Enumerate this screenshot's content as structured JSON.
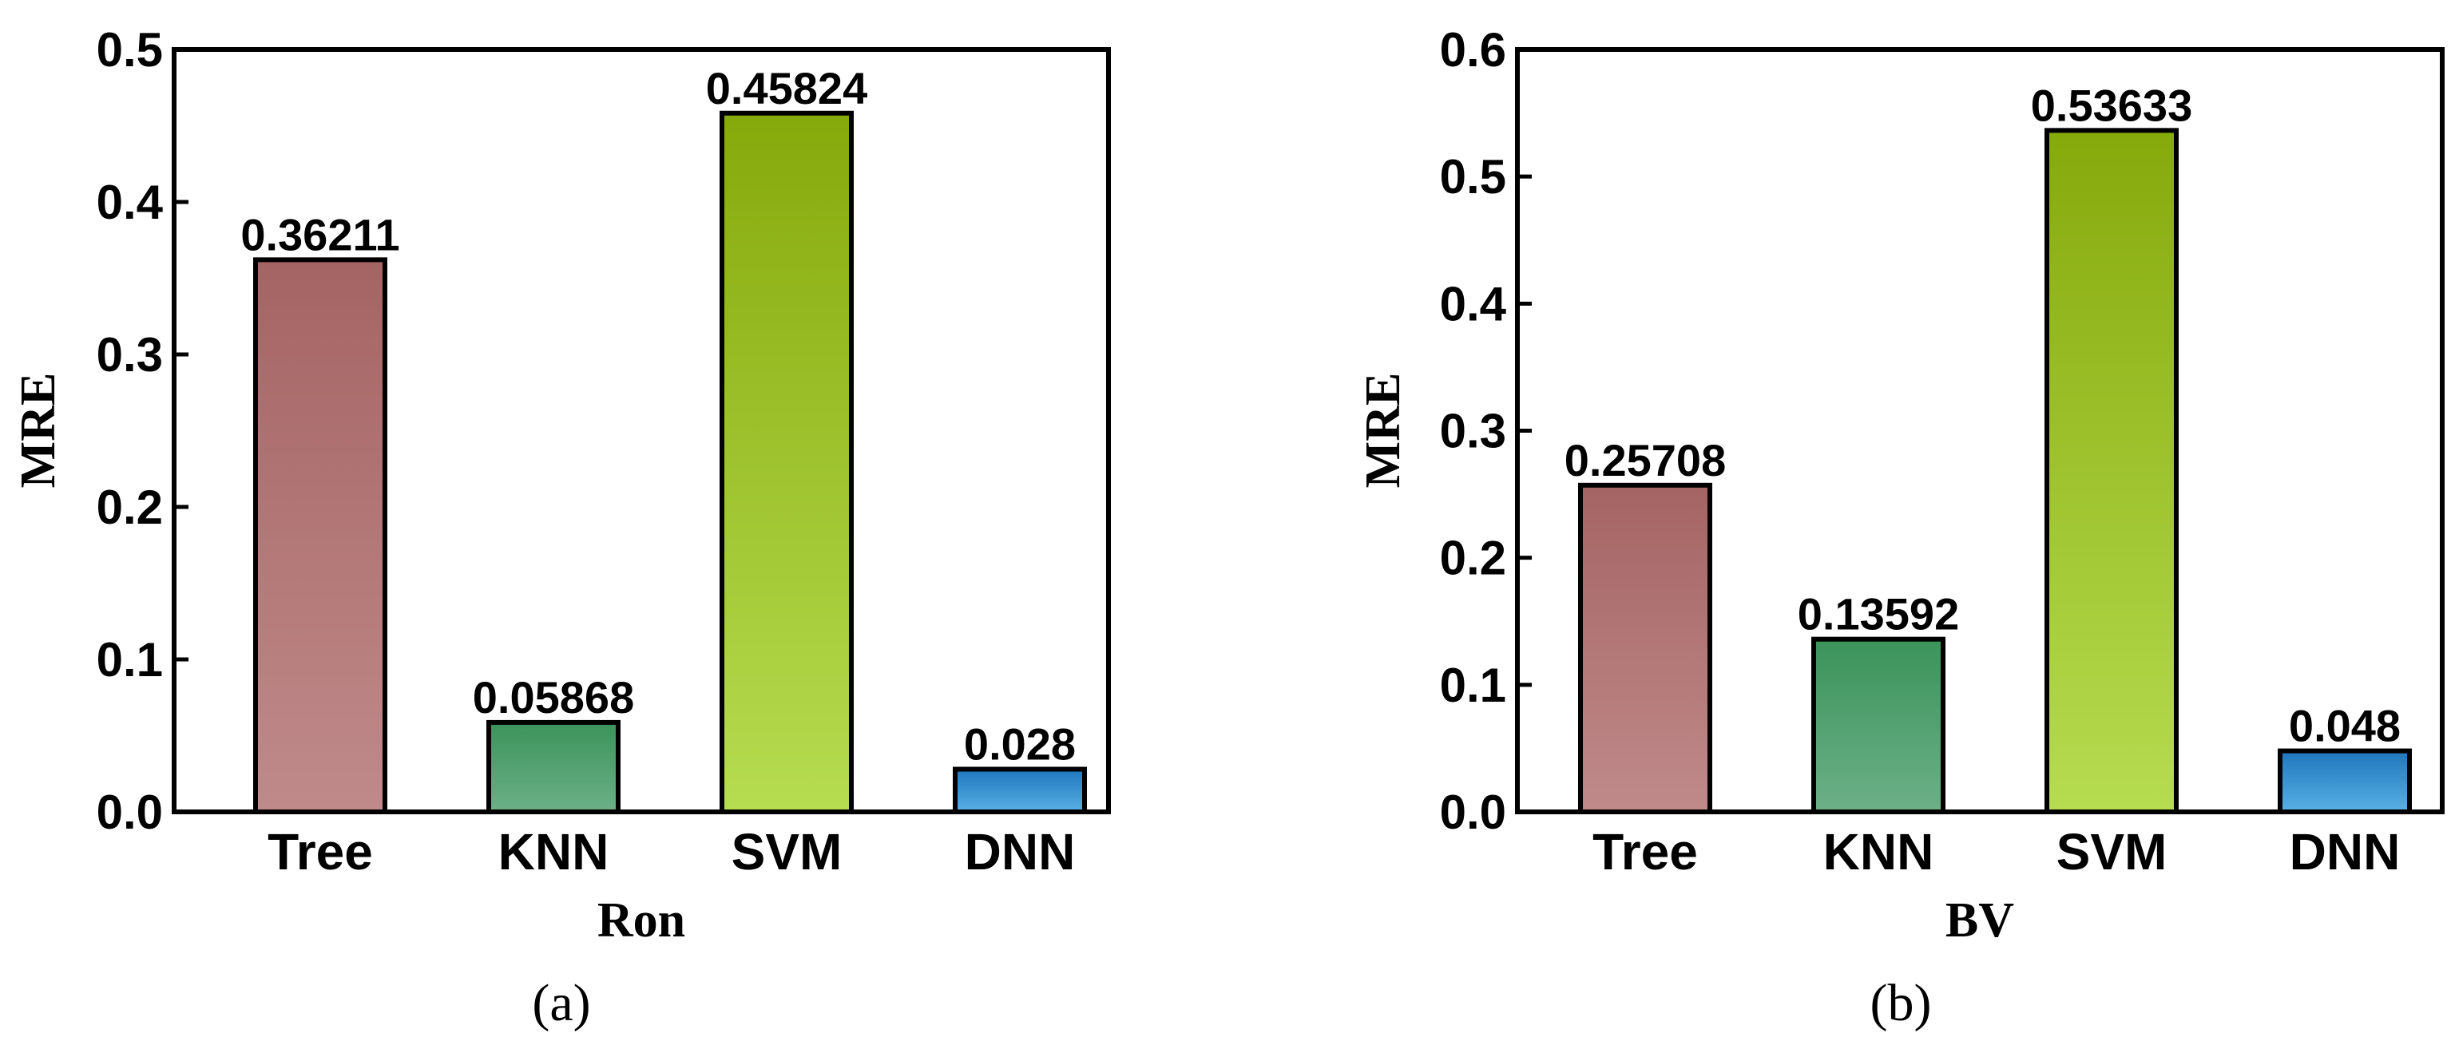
{
  "chart_data": [
    {
      "type": "bar",
      "panel_label": "(a)",
      "categories": [
        "Tree",
        "KNN",
        "SVM",
        "DNN"
      ],
      "values": [
        0.36211,
        0.05868,
        0.45824,
        0.028
      ],
      "data_labels": [
        "0.36211",
        "0.05868",
        "0.45824",
        "0.028"
      ],
      "xlabel": "Ron",
      "ylabel": "MRE",
      "ylim": [
        0,
        0.5
      ],
      "yticks": [
        "0.0",
        "0.1",
        "0.2",
        "0.3",
        "0.4",
        "0.5"
      ],
      "grid": false,
      "bar_colors": [
        {
          "top": "#a56464",
          "bottom": "#c08a8a"
        },
        {
          "top": "#3b935a",
          "bottom": "#6cb088"
        },
        {
          "top": "#86aa0c",
          "bottom": "#b6dc50"
        },
        {
          "top": "#1f76bd",
          "bottom": "#58b0e4"
        }
      ]
    },
    {
      "type": "bar",
      "panel_label": "(b)",
      "categories": [
        "Tree",
        "KNN",
        "SVM",
        "DNN"
      ],
      "values": [
        0.25708,
        0.13592,
        0.53633,
        0.048
      ],
      "data_labels": [
        "0.25708",
        "0.13592",
        "0.53633",
        "0.048"
      ],
      "xlabel": "BV",
      "ylabel": "MRE",
      "ylim": [
        0,
        0.6
      ],
      "yticks": [
        "0.0",
        "0.1",
        "0.2",
        "0.3",
        "0.4",
        "0.5",
        "0.6"
      ],
      "grid": false,
      "bar_colors": [
        {
          "top": "#a56464",
          "bottom": "#c08a8a"
        },
        {
          "top": "#3b935a",
          "bottom": "#6cb088"
        },
        {
          "top": "#86aa0c",
          "bottom": "#b6dc50"
        },
        {
          "top": "#1f76bd",
          "bottom": "#58b0e4"
        }
      ]
    }
  ]
}
